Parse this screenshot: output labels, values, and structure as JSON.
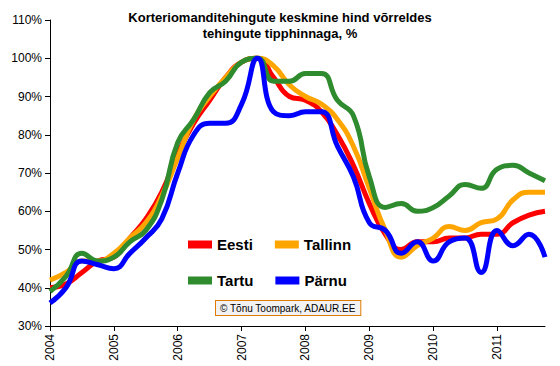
{
  "chart_data": {
    "type": "line",
    "title": "Korteriomanditehingute keskmine hind võrreldes\ntehingute tipphinnaga, %",
    "annotation": "© Tõnu Toompark, ADAUR.EE",
    "categories": [
      "2004",
      null,
      null,
      null,
      "2005",
      null,
      null,
      null,
      "2006",
      null,
      null,
      null,
      "2007",
      null,
      null,
      null,
      "2008",
      null,
      null,
      null,
      "2009",
      null,
      null,
      null,
      "2010",
      null,
      null,
      null,
      "2011",
      null,
      null,
      null
    ],
    "series": [
      {
        "name": "Eesti",
        "color": "#ff0000",
        "values": [
          40,
          41,
          44,
          47,
          48,
          53,
          58,
          65,
          75,
          83,
          89,
          95,
          99,
          100,
          95,
          90,
          89,
          86,
          80,
          72,
          62,
          54,
          50,
          52,
          52,
          53,
          53,
          54,
          54,
          57,
          59,
          60
        ]
      },
      {
        "name": "Tallinn",
        "color": "#ffa500",
        "values": [
          42,
          44,
          47,
          47,
          49,
          53,
          57,
          64,
          74,
          84,
          90,
          95,
          99,
          100,
          98,
          93,
          90,
          88,
          84,
          77,
          66,
          55,
          48,
          51,
          53,
          56,
          55,
          57,
          58,
          63,
          65,
          65
        ]
      },
      {
        "name": "Tartu",
        "color": "#2e8b2e",
        "values": [
          39,
          43,
          49,
          47,
          48,
          52,
          55,
          63,
          78,
          84,
          91,
          94,
          99,
          100,
          94,
          94,
          96,
          96,
          89,
          85,
          69,
          61,
          62,
          60,
          61,
          64,
          67,
          66,
          71,
          72,
          70,
          68
        ]
      },
      {
        "name": "Pärnu",
        "color": "#0000ff",
        "values": [
          36,
          40,
          47,
          46,
          45,
          49,
          53,
          58,
          70,
          80,
          83,
          83,
          88,
          100,
          86,
          85,
          86,
          86,
          77,
          69,
          57,
          55,
          49,
          52,
          47,
          52,
          53,
          44,
          55,
          51,
          54,
          48
        ]
      }
    ],
    "ylim": [
      30,
      110
    ],
    "yticks": [
      {
        "value": 30,
        "label": "30%"
      },
      {
        "value": 40,
        "label": "40%"
      },
      {
        "value": 50,
        "label": "50%"
      },
      {
        "value": 60,
        "label": "60%"
      },
      {
        "value": 70,
        "label": "70%"
      },
      {
        "value": 80,
        "label": "80%"
      },
      {
        "value": 90,
        "label": "90%"
      },
      {
        "value": 100,
        "label": "100%"
      },
      {
        "value": 110,
        "label": "110%"
      }
    ],
    "grid": false,
    "legend": "center"
  }
}
